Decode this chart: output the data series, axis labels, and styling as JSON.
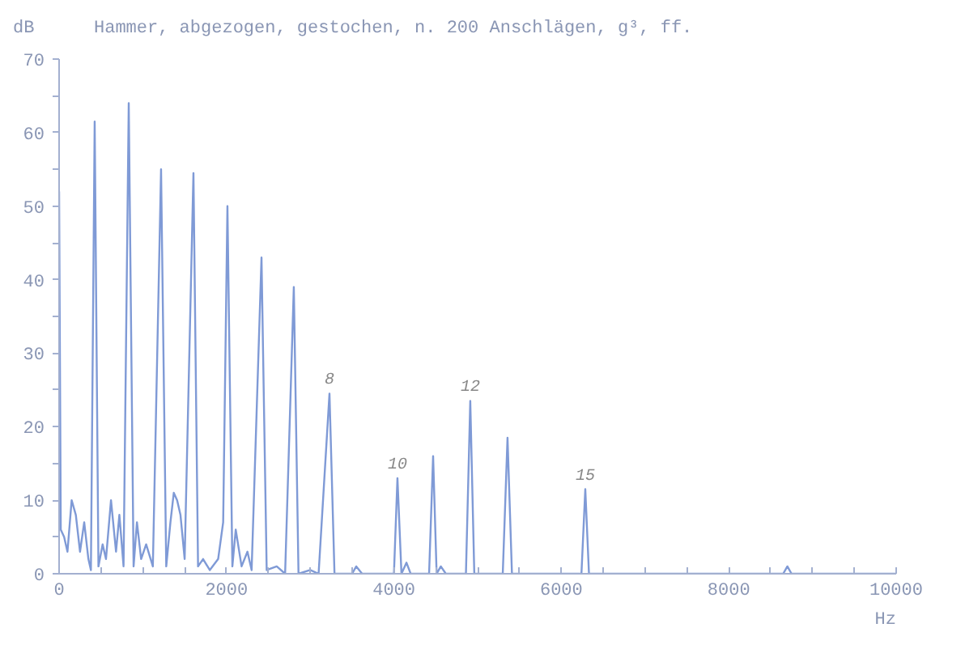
{
  "chart_data": {
    "type": "line",
    "title": "Hammer, abgezogen, gestochen, n. 200 Anschlägen, g³, ff.",
    "xlabel": "Hz",
    "ylabel": "dB",
    "xlim": [
      0,
      10000
    ],
    "ylim": [
      0,
      70
    ],
    "xticks": [
      0,
      {
        "value": 500,
        "label": null
      },
      2000,
      {
        "value": 1000,
        "label": null
      },
      {
        "value": 1500,
        "label": null
      },
      {
        "value": 2500,
        "label": null
      },
      {
        "value": 3000,
        "label": null
      },
      {
        "value": 3500,
        "label": null
      },
      4000,
      {
        "value": 4500,
        "label": null
      },
      {
        "value": 5000,
        "label": null
      },
      {
        "value": 5500,
        "label": null
      },
      6000,
      {
        "value": 6500,
        "label": null
      },
      {
        "value": 7000,
        "label": null
      },
      {
        "value": 7500,
        "label": null
      },
      8000,
      {
        "value": 8500,
        "label": null
      },
      {
        "value": 9000,
        "label": null
      },
      {
        "value": 9500,
        "label": null
      },
      10000
    ],
    "yticks": [
      0,
      {
        "value": 5,
        "label": null
      },
      10,
      {
        "value": 15,
        "label": null
      },
      20,
      {
        "value": 25,
        "label": null
      },
      30,
      {
        "value": 35,
        "label": null
      },
      40,
      {
        "value": 45,
        "label": null
      },
      50,
      {
        "value": 55,
        "label": null
      },
      60,
      {
        "value": 65,
        "label": null
      },
      70
    ],
    "grid": false,
    "marker": "none",
    "line_style": "solid",
    "series": [
      {
        "color": "#7f9ad6",
        "x": [
          0,
          20,
          60,
          100,
          150,
          200,
          250,
          300,
          350,
          380,
          425,
          470,
          520,
          560,
          620,
          680,
          720,
          770,
          832,
          890,
          930,
          980,
          1040,
          1120,
          1218,
          1280,
          1330,
          1370,
          1410,
          1450,
          1500,
          1605,
          1660,
          1720,
          1800,
          1900,
          1960,
          2011,
          2070,
          2110,
          2180,
          2250,
          2300,
          2418,
          2480,
          2600,
          2700,
          2804,
          2860,
          3000,
          3100,
          3230,
          3290,
          3500,
          3550,
          3620,
          4000,
          4042,
          4090,
          4150,
          4200,
          4420,
          4468,
          4510,
          4560,
          4620,
          4860,
          4912,
          4960,
          5300,
          5357,
          5410,
          6240,
          6286,
          6330,
          8650,
          8700,
          8750,
          10000
        ],
        "values": [
          52,
          6,
          5,
          3,
          10,
          8,
          3,
          7,
          2,
          0.5,
          61.5,
          1,
          4,
          2,
          10,
          3,
          8,
          1,
          64,
          1,
          7,
          2,
          4,
          1,
          55,
          1,
          7,
          11,
          10,
          8,
          2,
          54.5,
          1,
          2,
          0.5,
          2,
          7,
          50,
          1,
          6,
          1,
          3,
          0.5,
          43,
          0.5,
          1,
          0,
          39,
          0,
          0.5,
          0,
          24.5,
          0,
          0,
          1,
          0,
          0,
          13,
          0,
          1.5,
          0,
          0,
          16,
          0,
          1,
          0,
          0,
          23.5,
          0,
          0,
          18.5,
          0,
          0,
          11.5,
          0,
          0,
          1,
          0,
          0
        ]
      }
    ],
    "annotations": [
      {
        "text": "8",
        "x": 3230,
        "y": 24.5
      },
      {
        "text": "10",
        "x": 4042,
        "y": 13
      },
      {
        "text": "12",
        "x": 4912,
        "y": 23.5
      },
      {
        "text": "15",
        "x": 6286,
        "y": 11.5
      }
    ]
  }
}
